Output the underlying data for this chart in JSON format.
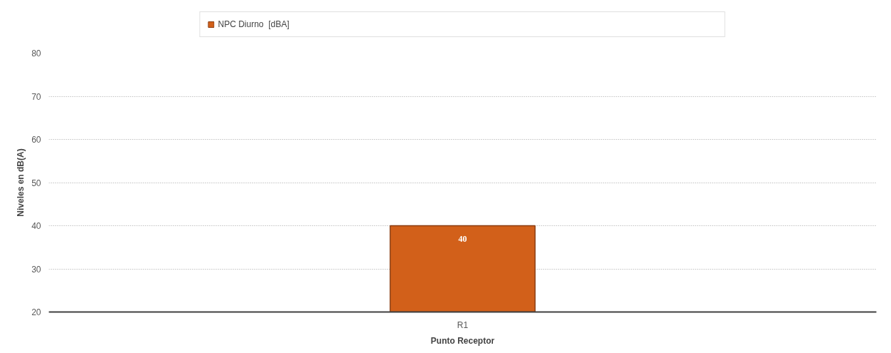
{
  "chart_data": {
    "type": "bar",
    "xlabel": "Punto Receptor",
    "ylabel": "Niveles en dB(A)",
    "categories": [
      "R1"
    ],
    "series": [
      {
        "name": "NPC Diurno  [dBA]",
        "color": "#d2601a",
        "values": [
          40
        ]
      }
    ],
    "ylim": [
      20,
      80
    ],
    "yticks": [
      20,
      30,
      40,
      50,
      60,
      70,
      80
    ],
    "grid": "y",
    "legend": "top",
    "data_labels": true
  }
}
